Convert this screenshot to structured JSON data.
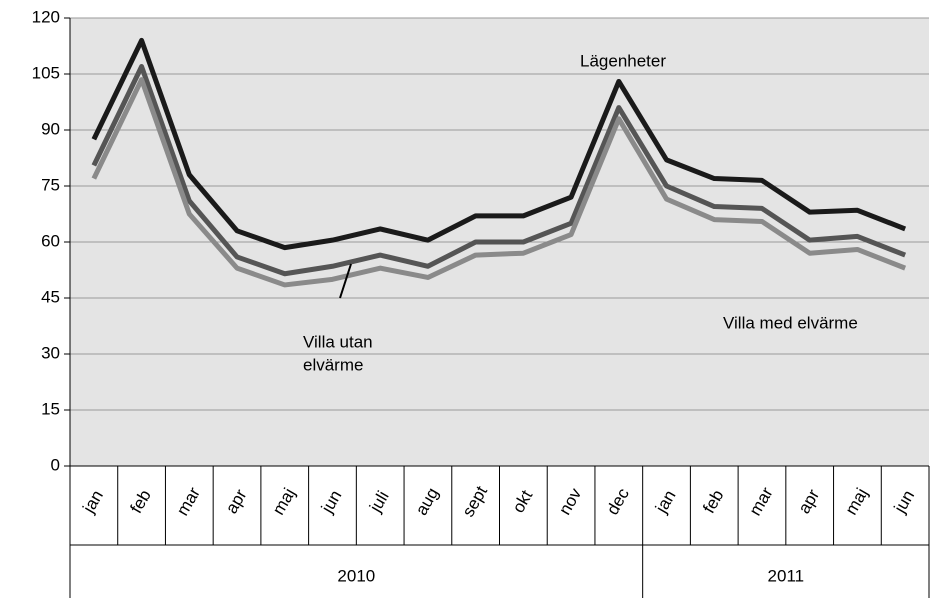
{
  "chart_data": {
    "type": "line",
    "category_groups": [
      {
        "label": "2010",
        "categories": [
          "jan",
          "feb",
          "mar",
          "apr",
          "maj",
          "jun",
          "juli",
          "aug",
          "sept",
          "okt",
          "nov",
          "dec"
        ]
      },
      {
        "label": "2011",
        "categories": [
          "jan",
          "feb",
          "mar",
          "apr",
          "maj",
          "jun"
        ]
      }
    ],
    "series": [
      {
        "name": "Lägenheter",
        "color": "#1a1a1a",
        "values": [
          87.5,
          114,
          78,
          63,
          58.5,
          60.5,
          63.5,
          60.5,
          67,
          67,
          72,
          103,
          82,
          77,
          76.5,
          68,
          68.5,
          63.5
        ]
      },
      {
        "name": "Villa utan elvärme",
        "color": "#555555",
        "values": [
          80.5,
          107,
          71,
          56,
          51.5,
          53.5,
          56.5,
          53.5,
          60,
          60,
          65,
          96,
          75,
          69.5,
          69,
          60.5,
          61.5,
          56.5
        ]
      },
      {
        "name": "Villa med elvärme",
        "color": "#8a8a8a",
        "values": [
          77,
          103.5,
          67.5,
          53,
          48.5,
          50,
          53,
          50.5,
          56.5,
          57,
          62,
          93,
          71.5,
          66,
          65.5,
          57,
          58,
          53
        ]
      }
    ],
    "annotations": [
      [
        "Lägenheter"
      ],
      [
        "Villa utan",
        "elvärme"
      ],
      [
        "Villa med elvärme"
      ]
    ],
    "ylim": [
      0,
      120
    ],
    "yticks": [
      0,
      15,
      30,
      45,
      60,
      75,
      90,
      105,
      120
    ],
    "grid": true
  }
}
